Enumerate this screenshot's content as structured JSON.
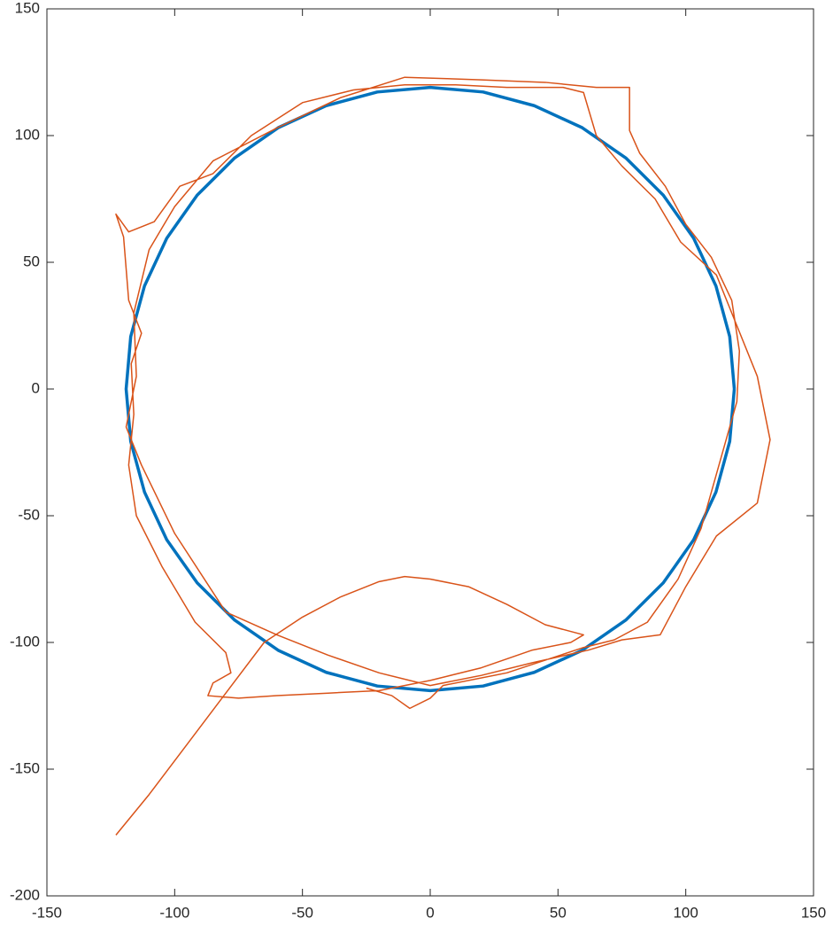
{
  "chart_data": {
    "type": "line",
    "xlim": [
      -150,
      150
    ],
    "ylim": [
      -200,
      150
    ],
    "xticks": [
      -150,
      -100,
      -50,
      0,
      50,
      100,
      150
    ],
    "yticks": [
      -200,
      -150,
      -100,
      -50,
      0,
      50,
      100,
      150
    ],
    "grid": false,
    "series": [
      {
        "color": "#0072BD",
        "x": [
          119,
          117.2,
          111.8,
          103.1,
          91.2,
          76.5,
          59.5,
          40.7,
          20.7,
          0,
          -20.7,
          -40.7,
          -59.5,
          -76.5,
          -91.2,
          -103.1,
          -111.8,
          -117.2,
          -119,
          -117.2,
          -111.8,
          -103.1,
          -91.2,
          -76.5,
          -59.5,
          -40.7,
          -20.7,
          0,
          20.7,
          40.7,
          59.5,
          76.5,
          91.2,
          103.1,
          111.8,
          117.2,
          119
        ],
        "values": [
          0,
          20.7,
          40.7,
          59.5,
          76.5,
          91.2,
          103.1,
          111.8,
          117.2,
          119,
          117.2,
          111.8,
          103.1,
          91.2,
          76.5,
          59.5,
          40.7,
          20.7,
          0,
          -20.7,
          -40.7,
          -59.5,
          -76.5,
          -91.2,
          -103.1,
          -111.8,
          -117.2,
          -119,
          -117.2,
          -111.8,
          -103.1,
          -91.2,
          -76.5,
          -59.5,
          -40.7,
          -20.7,
          0
        ]
      },
      {
        "color": "#D95319",
        "x": [
          -123,
          -110,
          -95,
          -80,
          -65,
          -50,
          -35,
          -20,
          -10,
          0,
          15,
          30,
          45,
          60,
          55,
          40,
          20,
          0,
          -20,
          -40,
          -60,
          -75,
          -87,
          -85,
          -78,
          -80,
          -92,
          -105,
          -115,
          -118,
          -116,
          -117,
          -113,
          -118,
          -120,
          -123,
          -118,
          -108,
          -98,
          -85,
          -70,
          -50,
          -30,
          -10,
          10,
          30,
          52,
          60,
          65,
          75,
          88,
          98,
          112,
          120,
          128,
          133,
          128,
          112,
          100,
          90,
          75,
          62,
          40,
          20,
          0,
          -20,
          -40,
          -60,
          -80,
          -100,
          -113,
          -119,
          -115,
          -116,
          -110,
          -100,
          -85,
          -60,
          -35,
          -10,
          20,
          45,
          65,
          78,
          78,
          82,
          92,
          100,
          110,
          118,
          121,
          120,
          113,
          106,
          97,
          85,
          72,
          60,
          30,
          5,
          0,
          -8,
          -15,
          -25
        ],
        "values": [
          -176,
          -160,
          -140,
          -120,
          -100,
          -90,
          -82,
          -76,
          -74,
          -75,
          -78,
          -85,
          -93,
          -97,
          -100,
          -103,
          -110,
          -115,
          -119,
          -120,
          -121,
          -122,
          -121,
          -116,
          -112,
          -104,
          -92,
          -70,
          -50,
          -30,
          -10,
          10,
          22,
          35,
          60,
          69,
          62,
          66,
          80,
          85,
          100,
          113,
          118,
          120,
          120,
          119,
          119,
          117,
          100,
          88,
          75,
          58,
          45,
          25,
          5,
          -20,
          -45,
          -58,
          -78,
          -97,
          -99,
          -103,
          -108,
          -113,
          -117,
          -112,
          -105,
          -97,
          -88,
          -57,
          -30,
          -15,
          5,
          30,
          55,
          72,
          90,
          103,
          115,
          123,
          122,
          121,
          119,
          119,
          102,
          93,
          80,
          65,
          52,
          35,
          15,
          -5,
          -30,
          -55,
          -75,
          -92,
          -99,
          -102,
          -112,
          -117,
          -122,
          -126,
          -121,
          -118
        ]
      }
    ]
  }
}
